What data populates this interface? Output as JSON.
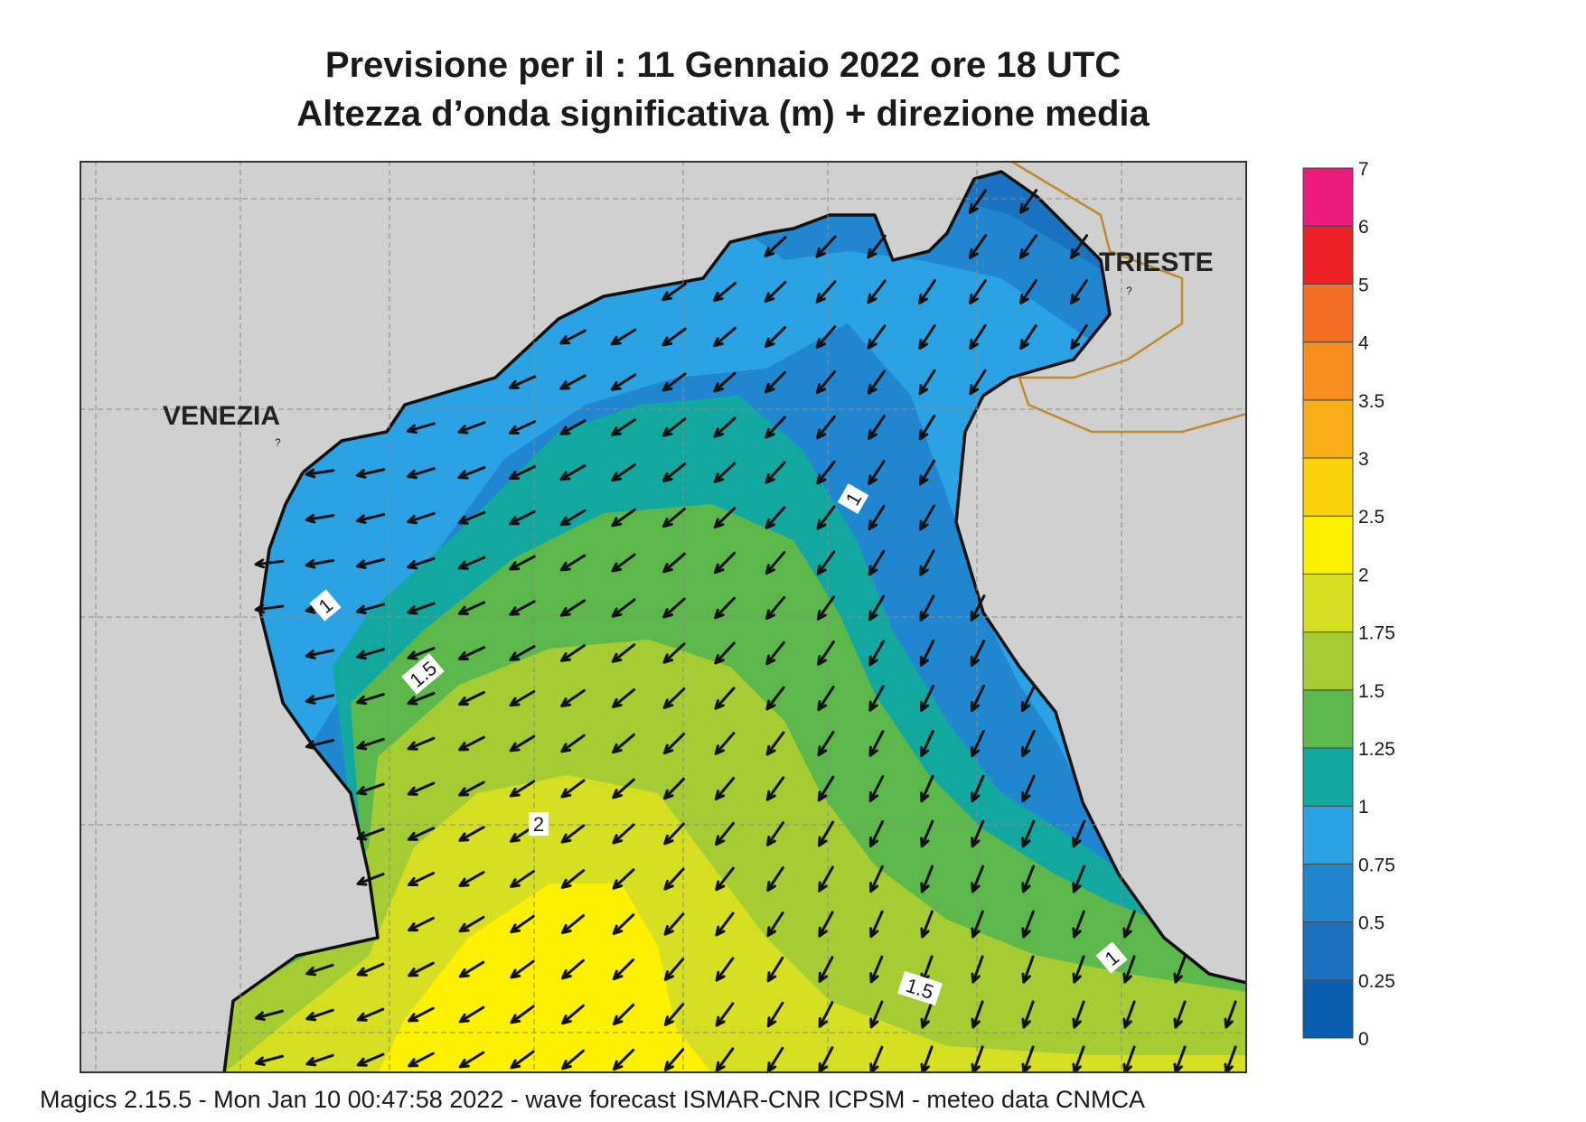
{
  "title": {
    "line1": "Previsione per il  :  11  Gennaio  2022   ore 18 UTC",
    "line2": "Altezza d’onda significativa (m) + direzione media"
  },
  "places": [
    {
      "name": "VENEZIA"
    },
    {
      "name": "TRIESTE"
    }
  ],
  "contour_labels": [
    "1",
    "1",
    "1.5",
    "2",
    "1.5",
    "1"
  ],
  "colorbar": {
    "ticks": [
      "0",
      "0.25",
      "0.5",
      "0.75",
      "1",
      "1.25",
      "1.5",
      "1.75",
      "2",
      "2.5",
      "3",
      "3.5",
      "4",
      "5",
      "6",
      "7"
    ],
    "colors": [
      "#0a5fb0",
      "#1a72c0",
      "#1f86cf",
      "#2ba2e3",
      "#12a8a0",
      "#5db84b",
      "#a5cc33",
      "#d6df22",
      "#fdf000",
      "#fcd30a",
      "#f9ae17",
      "#f78f1e",
      "#f46f24",
      "#ec2026",
      "#ec1b7b"
    ]
  },
  "colors": {
    "land": "#d0d0d0",
    "coast": "#111111",
    "border": "#c08a2c",
    "grid": "#8a8a8a"
  },
  "footer": "Magics 2.15.5 - Mon Jan 10 00:47:58 2022 - wave forecast  ISMAR-CNR  ICPSM - meteo data   CNMCA"
}
